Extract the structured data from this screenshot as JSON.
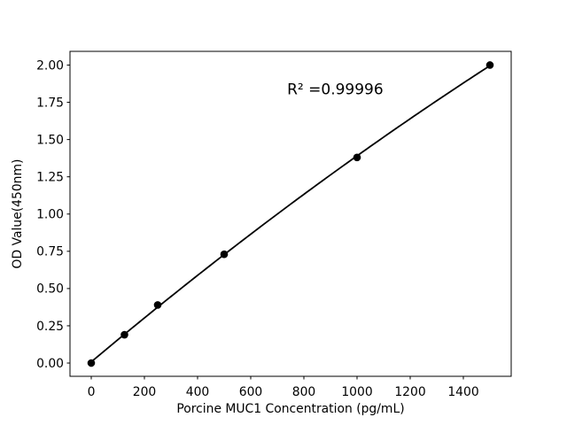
{
  "figure": {
    "background": "#ffffff"
  },
  "chart_data": {
    "type": "scatter",
    "title": "",
    "xlabel": "Porcine MUC1 Concentration (pg/mL)",
    "ylabel": "OD Value(450nm)",
    "x": [
      0,
      125,
      250,
      500,
      1000,
      1500
    ],
    "y": [
      0.0,
      0.19,
      0.39,
      0.73,
      1.38,
      2.0
    ],
    "fit_curve": "quadratic",
    "annotation": {
      "text": "R² =0.99996",
      "x": 918,
      "y": 1.84
    },
    "xticks": {
      "values": [
        0,
        200,
        400,
        600,
        800,
        1000,
        1200,
        1400
      ],
      "labels": [
        "0",
        "200",
        "400",
        "600",
        "800",
        "1000",
        "1200",
        "1400"
      ]
    },
    "yticks": {
      "values": [
        0,
        0.25,
        0.5,
        0.75,
        1.0,
        1.25,
        1.5,
        1.75,
        2.0
      ],
      "labels": [
        "0.00",
        "0.25",
        "0.50",
        "0.75",
        "1.00",
        "1.25",
        "1.50",
        "1.75",
        "2.00"
      ]
    },
    "xlim": [
      -80,
      1580
    ],
    "ylim": [
      -0.089,
      2.092
    ],
    "grid": false,
    "legend": "none",
    "line_color": "#000000",
    "marker_color": "#000000",
    "axis_color": "#000000"
  }
}
